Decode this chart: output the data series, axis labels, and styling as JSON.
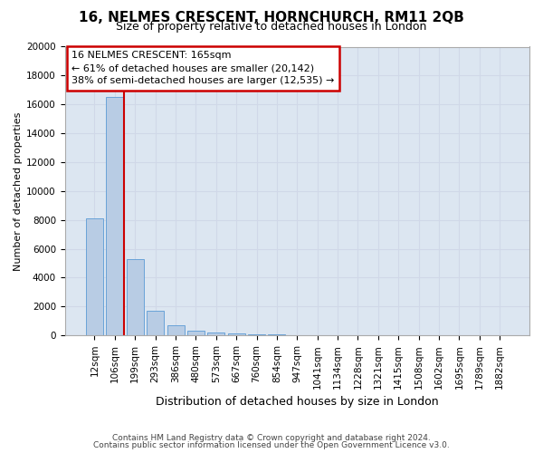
{
  "title": "16, NELMES CRESCENT, HORNCHURCH, RM11 2QB",
  "subtitle": "Size of property relative to detached houses in London",
  "xlabel": "Distribution of detached houses by size in London",
  "ylabel": "Number of detached properties",
  "footnote1": "Contains HM Land Registry data © Crown copyright and database right 2024.",
  "footnote2": "Contains public sector information licensed under the Open Government Licence v3.0.",
  "categories": [
    "12sqm",
    "106sqm",
    "199sqm",
    "293sqm",
    "386sqm",
    "480sqm",
    "573sqm",
    "667sqm",
    "760sqm",
    "854sqm",
    "947sqm",
    "1041sqm",
    "1134sqm",
    "1228sqm",
    "1321sqm",
    "1415sqm",
    "1508sqm",
    "1602sqm",
    "1695sqm",
    "1789sqm",
    "1882sqm"
  ],
  "values": [
    8100,
    16500,
    5300,
    1700,
    700,
    350,
    200,
    120,
    80,
    50,
    30,
    20,
    15,
    10,
    8,
    6,
    5,
    4,
    3,
    2,
    2
  ],
  "bar_color": "#b8cce4",
  "bar_edge_color": "#5b9bd5",
  "grid_color": "#d0d8e8",
  "background_color": "#dce6f1",
  "annotation_text1": "16 NELMES CRESCENT: 165sqm",
  "annotation_text2": "← 61% of detached houses are smaller (20,142)",
  "annotation_text3": "38% of semi-detached houses are larger (12,535) →",
  "annotation_box_color": "#ffffff",
  "annotation_box_edge": "#cc0000",
  "redline_color": "#cc0000",
  "redline_x": 1.45,
  "ylim": [
    0,
    20000
  ],
  "yticks": [
    0,
    2000,
    4000,
    6000,
    8000,
    10000,
    12000,
    14000,
    16000,
    18000,
    20000
  ],
  "title_fontsize": 11,
  "subtitle_fontsize": 9,
  "ylabel_fontsize": 8,
  "xlabel_fontsize": 9,
  "tick_fontsize": 7.5,
  "footnote_fontsize": 6.5,
  "ann_fontsize": 8
}
